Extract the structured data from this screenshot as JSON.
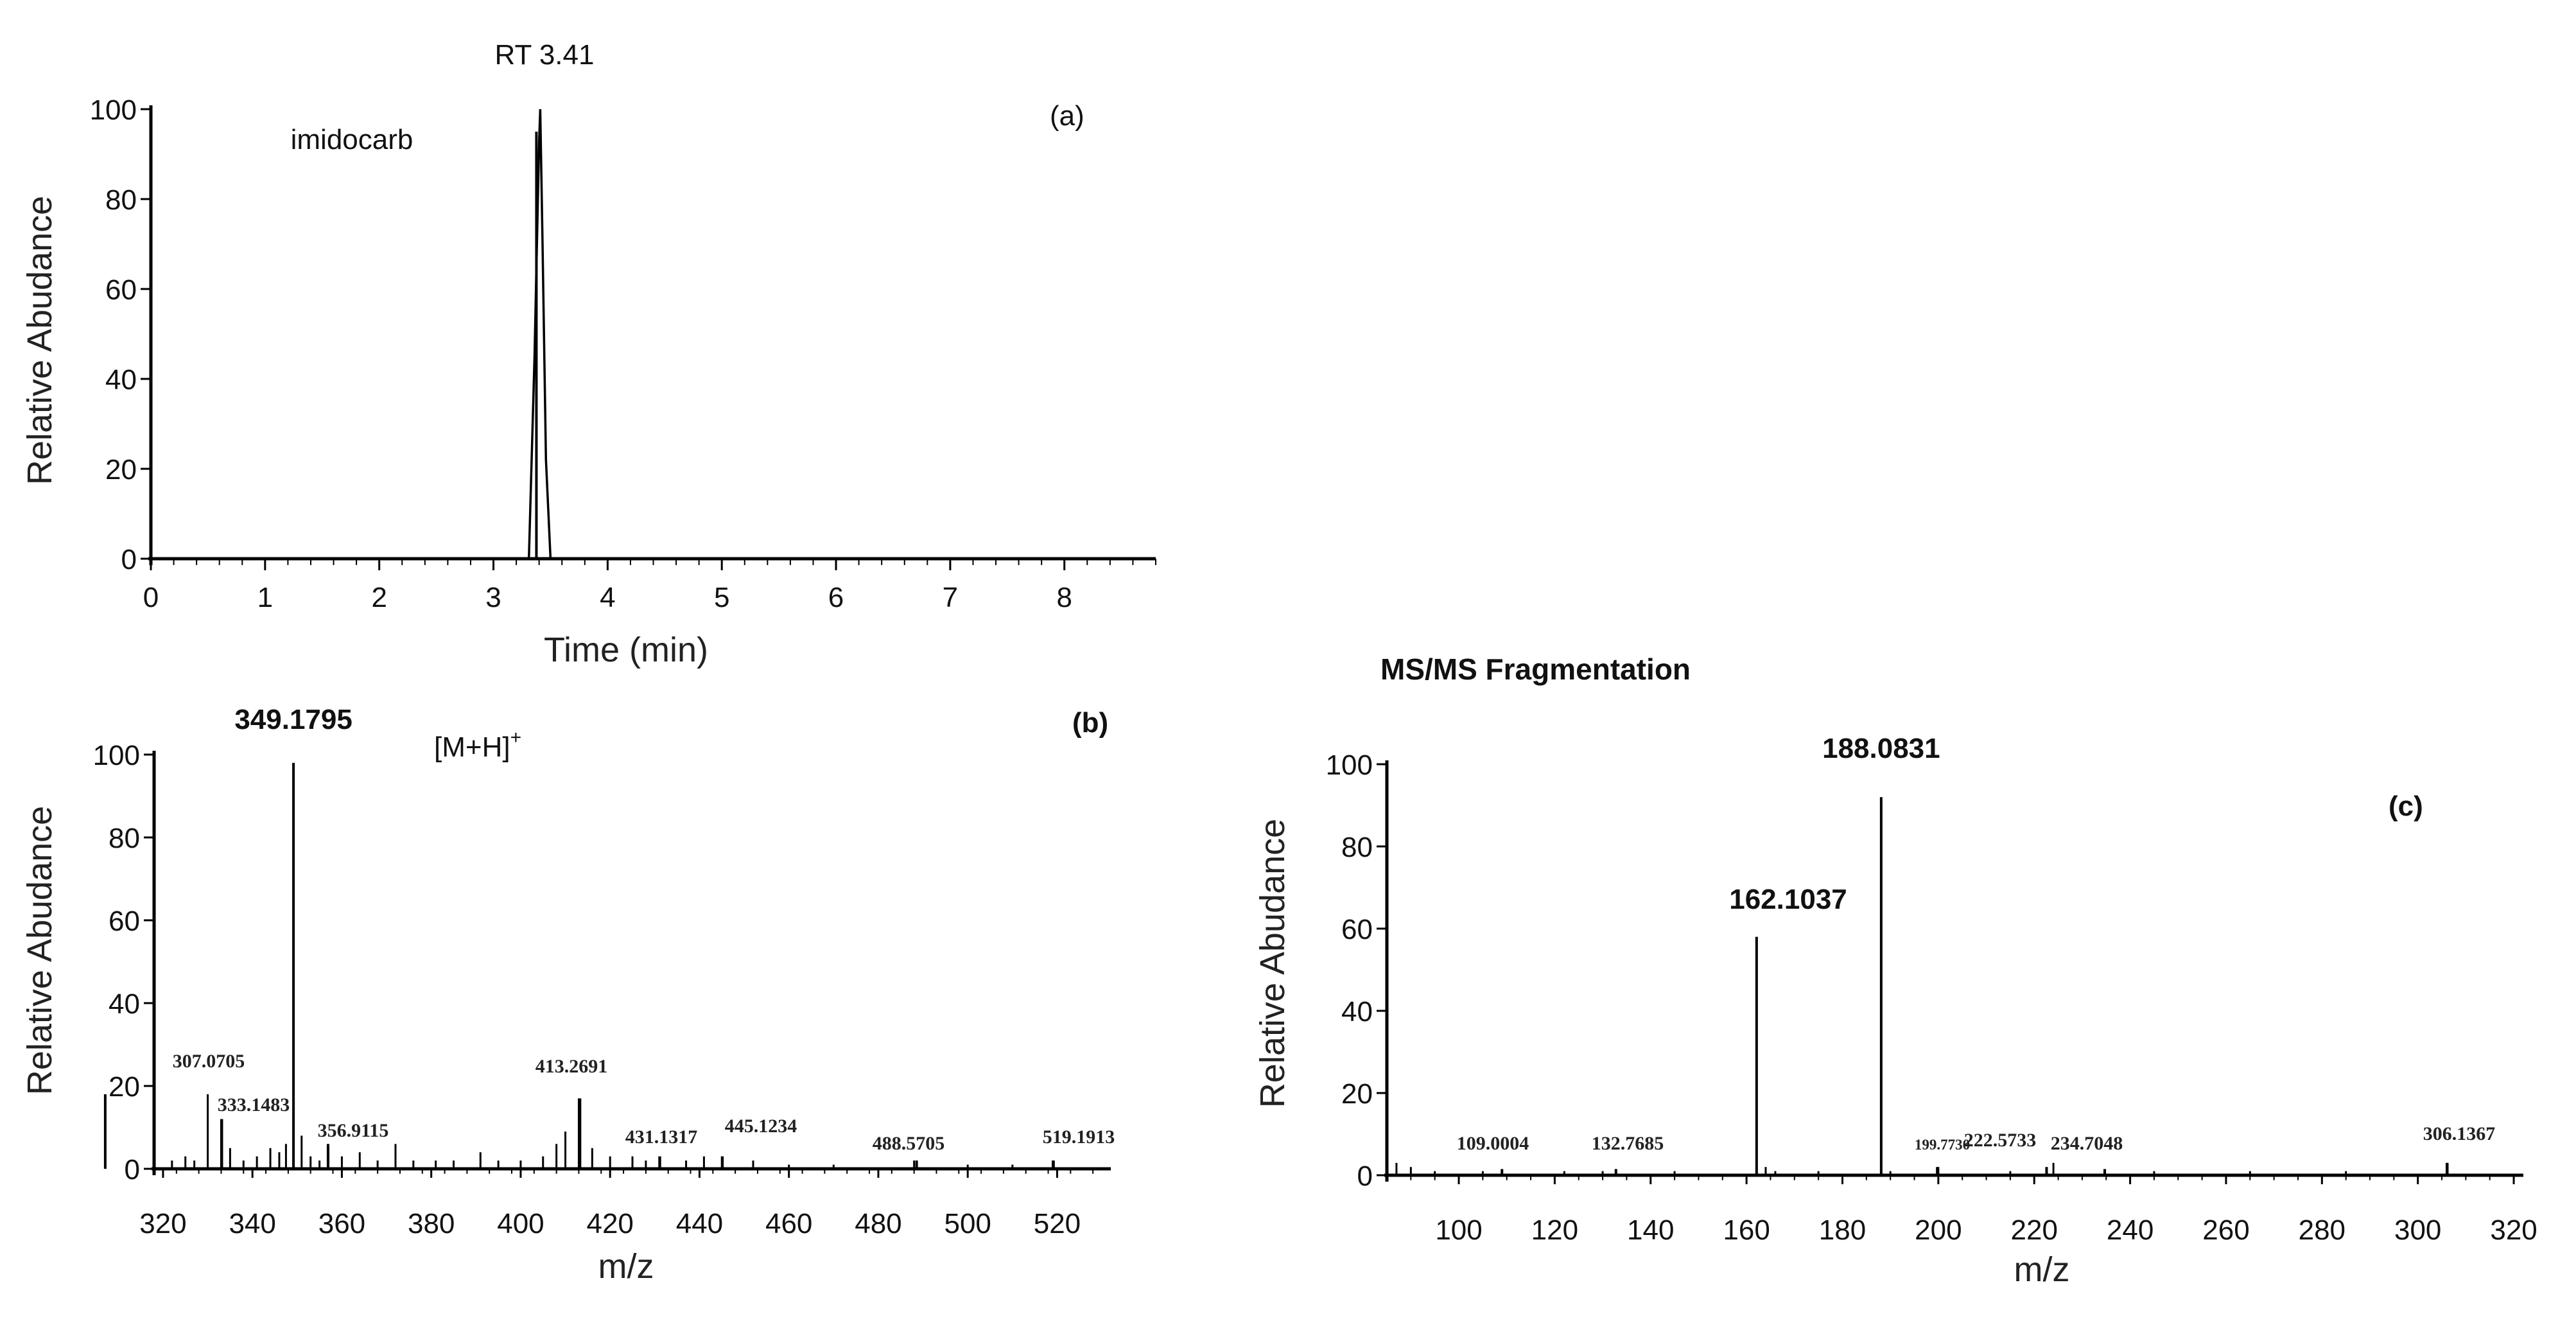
{
  "figure": {
    "fragmentation_title": "MS/MS Fragmentation"
  },
  "chart_data": [
    {
      "id": "a",
      "type": "line",
      "panel_label": "(a)",
      "xlabel": "Time (min)",
      "ylabel": "Relative Abudance",
      "xlim": [
        0,
        8.8
      ],
      "ylim": [
        0,
        100
      ],
      "x_ticks": [
        0,
        1,
        2,
        3,
        4,
        5,
        6,
        7,
        8
      ],
      "y_ticks": [
        0,
        20,
        40,
        60,
        80,
        100
      ],
      "grid": false,
      "annotations": [
        {
          "text": "RT 3.41",
          "x": 3.41,
          "y": 100
        },
        {
          "text": "imidocarb",
          "x": 1.75,
          "y": 93
        }
      ],
      "series": [
        {
          "x": [
            0,
            3.31,
            3.36,
            3.4,
            3.41,
            3.43,
            3.46,
            3.5,
            8.8
          ],
          "y": [
            0,
            0,
            45,
            93,
            100,
            70,
            22,
            0,
            0
          ]
        }
      ]
    },
    {
      "id": "b",
      "type": "bar",
      "panel_label": "(b)",
      "xlabel": "m/z",
      "ylabel": "Relative Abudance",
      "xlim": [
        318,
        532
      ],
      "ylim": [
        0,
        100
      ],
      "x_ticks": [
        320,
        340,
        360,
        380,
        400,
        420,
        440,
        460,
        480,
        500,
        520
      ],
      "y_ticks": [
        0,
        20,
        40,
        60,
        80,
        100
      ],
      "grid": false,
      "annotations": [
        {
          "text": "[M+H]",
          "superscript": "+",
          "x": 359.5,
          "y": 101
        }
      ],
      "peaks": [
        {
          "x": 349.1795,
          "y": 98,
          "label": "349.1795"
        },
        {
          "x": 307.0705,
          "y": 18,
          "label": "307.0705"
        },
        {
          "x": 333.1483,
          "y": 12,
          "label": "333.1483"
        },
        {
          "x": 356.9115,
          "y": 6,
          "label": "356.9115"
        },
        {
          "x": 413.2691,
          "y": 17,
          "label": "413.2691"
        },
        {
          "x": 431.1317,
          "y": 3,
          "label": "431.1317"
        },
        {
          "x": 445.1234,
          "y": 3,
          "label": "445.1234"
        },
        {
          "x": 488.5705,
          "y": 2,
          "label": "488.5705"
        },
        {
          "x": 519.1913,
          "y": 2,
          "label": "519.1913"
        }
      ],
      "noise_peaks": [
        {
          "x": 322,
          "y": 2
        },
        {
          "x": 325,
          "y": 3
        },
        {
          "x": 327,
          "y": 2
        },
        {
          "x": 330,
          "y": 18
        },
        {
          "x": 333,
          "y": 12
        },
        {
          "x": 335,
          "y": 5
        },
        {
          "x": 338,
          "y": 2
        },
        {
          "x": 341,
          "y": 3
        },
        {
          "x": 344,
          "y": 5
        },
        {
          "x": 346,
          "y": 4
        },
        {
          "x": 347.5,
          "y": 6
        },
        {
          "x": 351,
          "y": 8
        },
        {
          "x": 353,
          "y": 3
        },
        {
          "x": 355,
          "y": 2
        },
        {
          "x": 357,
          "y": 5
        },
        {
          "x": 360,
          "y": 3
        },
        {
          "x": 364,
          "y": 4
        },
        {
          "x": 368,
          "y": 2
        },
        {
          "x": 372,
          "y": 6
        },
        {
          "x": 376,
          "y": 2
        },
        {
          "x": 381,
          "y": 2
        },
        {
          "x": 385,
          "y": 2
        },
        {
          "x": 391,
          "y": 4
        },
        {
          "x": 395,
          "y": 2
        },
        {
          "x": 400,
          "y": 2
        },
        {
          "x": 405,
          "y": 3
        },
        {
          "x": 408,
          "y": 6
        },
        {
          "x": 410,
          "y": 9
        },
        {
          "x": 413,
          "y": 17
        },
        {
          "x": 416,
          "y": 5
        },
        {
          "x": 420,
          "y": 3
        },
        {
          "x": 425,
          "y": 3
        },
        {
          "x": 428,
          "y": 2
        },
        {
          "x": 431,
          "y": 3
        },
        {
          "x": 437,
          "y": 2
        },
        {
          "x": 441,
          "y": 3
        },
        {
          "x": 445,
          "y": 3
        },
        {
          "x": 452,
          "y": 2
        },
        {
          "x": 460,
          "y": 1
        },
        {
          "x": 470,
          "y": 1
        },
        {
          "x": 488,
          "y": 2
        },
        {
          "x": 500,
          "y": 1
        },
        {
          "x": 510,
          "y": 1
        },
        {
          "x": 519,
          "y": 2
        }
      ]
    },
    {
      "id": "c",
      "type": "bar",
      "panel_label": "(c)",
      "xlabel": "m/z",
      "ylabel": "Relative Abudance",
      "xlim": [
        85,
        322
      ],
      "ylim": [
        0,
        100
      ],
      "x_ticks": [
        100,
        120,
        140,
        160,
        180,
        200,
        220,
        240,
        260,
        280,
        300,
        320
      ],
      "y_ticks": [
        0,
        20,
        40,
        60,
        80,
        100
      ],
      "grid": false,
      "annotations": [],
      "peaks": [
        {
          "x": 188.0831,
          "y": 92,
          "label": "188.0831"
        },
        {
          "x": 162.1037,
          "y": 58,
          "label": "162.1037"
        },
        {
          "x": 109.0004,
          "y": 1.5,
          "label": "109.0004"
        },
        {
          "x": 132.7685,
          "y": 1.5,
          "label": "132.7685"
        },
        {
          "x": 199.773,
          "y": 2,
          "label": "199.7730"
        },
        {
          "x": 222.5733,
          "y": 2,
          "label": "222.5733"
        },
        {
          "x": 234.7048,
          "y": 1.5,
          "label": "234.7048"
        },
        {
          "x": 306.1367,
          "y": 3,
          "label": "306.1367"
        }
      ],
      "noise_peaks": [
        {
          "x": 87,
          "y": 3
        },
        {
          "x": 90,
          "y": 2
        },
        {
          "x": 95,
          "y": 1
        },
        {
          "x": 105,
          "y": 1
        },
        {
          "x": 122,
          "y": 1
        },
        {
          "x": 130,
          "y": 1
        },
        {
          "x": 145,
          "y": 1
        },
        {
          "x": 164,
          "y": 2
        },
        {
          "x": 166,
          "y": 1
        },
        {
          "x": 175,
          "y": 1
        },
        {
          "x": 190,
          "y": 1
        },
        {
          "x": 200,
          "y": 2
        },
        {
          "x": 215,
          "y": 1
        },
        {
          "x": 224,
          "y": 3
        },
        {
          "x": 245,
          "y": 1
        },
        {
          "x": 265,
          "y": 1
        },
        {
          "x": 285,
          "y": 1
        },
        {
          "x": 306,
          "y": 3
        }
      ]
    }
  ]
}
